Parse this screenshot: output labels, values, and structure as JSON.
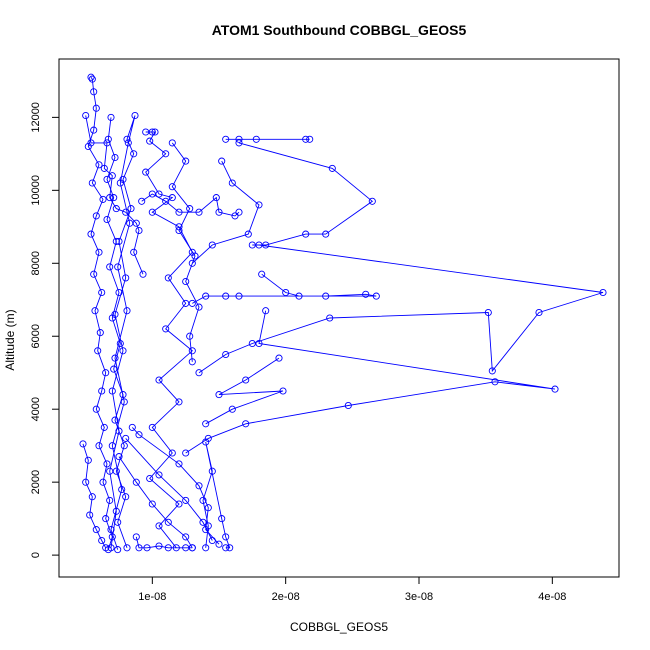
{
  "chart_data": {
    "type": "scatter",
    "title": "ATOM1 Southbound COBBGL_GEOS5",
    "xlabel": "COBBGL_GEOS5",
    "ylabel": "Altitude (m)",
    "xlim": [
      3e-09,
      4.5e-08
    ],
    "ylim": [
      -600,
      13600
    ],
    "x_ticks": [
      1e-08,
      2e-08,
      3e-08,
      4e-08
    ],
    "x_tick_labels": [
      "1e-08",
      "2e-08",
      "3e-08",
      "4e-08"
    ],
    "y_ticks": [
      0,
      2000,
      4000,
      6000,
      8000,
      10000,
      12000
    ],
    "y_tick_labels": [
      "0",
      "2000",
      "4000",
      "6000",
      "8000",
      "10000",
      "12000"
    ],
    "grid": false,
    "legend": "none",
    "marker": "open-circle",
    "connected": true,
    "series_color": "#0000ff",
    "series": [
      {
        "name": "",
        "points": [
          [
            5.4e-09,
            13100
          ],
          [
            5.5e-09,
            13050
          ],
          [
            5.6e-09,
            12700
          ],
          [
            5.8e-09,
            12250
          ],
          [
            5.6e-09,
            11650
          ],
          [
            5.2e-09,
            11200
          ],
          [
            6e-09,
            10700
          ],
          [
            5.5e-09,
            10200
          ],
          [
            6.3e-09,
            9750
          ],
          [
            5.8e-09,
            9300
          ],
          [
            5.4e-09,
            8800
          ],
          [
            6e-09,
            8300
          ],
          [
            5.6e-09,
            7700
          ],
          [
            6.2e-09,
            7200
          ],
          [
            5.7e-09,
            6700
          ],
          [
            6.1e-09,
            6100
          ],
          [
            5.9e-09,
            5600
          ],
          [
            6.5e-09,
            5000
          ],
          [
            6.2e-09,
            4500
          ],
          [
            5.8e-09,
            4000
          ],
          [
            6.4e-09,
            3500
          ],
          [
            6e-09,
            3000
          ],
          [
            6.6e-09,
            2500
          ],
          [
            6.3e-09,
            2000
          ],
          [
            6.8e-09,
            1500
          ],
          [
            6.5e-09,
            1000
          ],
          [
            7e-09,
            500
          ],
          [
            6.7e-09,
            150
          ]
        ]
      },
      {
        "name": "",
        "points": [
          [
            6.9e-09,
            200
          ],
          [
            7.3e-09,
            1200
          ],
          [
            6.8e-09,
            2300
          ],
          [
            7.5e-09,
            3400
          ],
          [
            7e-09,
            4500
          ],
          [
            7.8e-09,
            5600
          ],
          [
            7.2e-09,
            6600
          ],
          [
            8e-09,
            7600
          ],
          [
            7.5e-09,
            8600
          ],
          [
            8.4e-09,
            9500
          ],
          [
            7.8e-09,
            10300
          ],
          [
            8.6e-09,
            11000
          ],
          [
            8.1e-09,
            11400
          ],
          [
            8.7e-09,
            12050
          ],
          [
            8.2e-09,
            11300
          ],
          [
            7.6e-09,
            10200
          ],
          [
            8.3e-09,
            9100
          ],
          [
            7.4e-09,
            7900
          ],
          [
            8.1e-09,
            6700
          ],
          [
            7.2e-09,
            5400
          ],
          [
            7.9e-09,
            4200
          ],
          [
            7e-09,
            3000
          ],
          [
            7.7e-09,
            1800
          ],
          [
            6.9e-09,
            700
          ],
          [
            7.4e-09,
            150
          ]
        ]
      },
      {
        "name": "",
        "points": [
          [
            1e-08,
            11600
          ],
          [
            9.5e-09,
            11600
          ],
          [
            1.02e-08,
            11600
          ],
          [
            9.8e-09,
            11350
          ],
          [
            1.1e-08,
            11000
          ],
          [
            9.5e-09,
            10500
          ],
          [
            1.05e-08,
            9900
          ],
          [
            1.15e-08,
            9800
          ],
          [
            1e-08,
            9400
          ],
          [
            1.2e-08,
            9000
          ],
          [
            1.3e-08,
            8300
          ],
          [
            1.12e-08,
            7600
          ],
          [
            1.25e-08,
            6900
          ],
          [
            1.1e-08,
            6200
          ],
          [
            1.3e-08,
            5600
          ],
          [
            1.05e-08,
            4800
          ],
          [
            1.2e-08,
            4200
          ],
          [
            1e-08,
            3500
          ],
          [
            1.15e-08,
            2800
          ],
          [
            9.8e-09,
            2100
          ],
          [
            1.2e-08,
            1400
          ],
          [
            1.05e-08,
            800
          ],
          [
            1.18e-08,
            200
          ]
        ]
      },
      {
        "name": "",
        "points": [
          [
            1.55e-08,
            11400
          ],
          [
            1.65e-08,
            11400
          ],
          [
            1.78e-08,
            11400
          ],
          [
            2.15e-08,
            11400
          ],
          [
            2.18e-08,
            11400
          ]
        ]
      },
      {
        "name": "",
        "points": [
          [
            1.65e-08,
            11300
          ],
          [
            2.35e-08,
            10600
          ],
          [
            2.65e-08,
            9700
          ],
          [
            2.3e-08,
            8800
          ],
          [
            2.15e-08,
            8800
          ],
          [
            1.85e-08,
            8500
          ],
          [
            1.75e-08,
            8500
          ]
        ]
      },
      {
        "name": "",
        "points": [
          [
            1.52e-08,
            10800
          ],
          [
            1.6e-08,
            10200
          ],
          [
            1.8e-08,
            9600
          ],
          [
            1.72e-08,
            8800
          ],
          [
            1.45e-08,
            8500
          ],
          [
            1.3e-08,
            8000
          ]
        ]
      },
      {
        "name": "",
        "points": [
          [
            1.8e-08,
            8500
          ],
          [
            4.38e-08,
            7200
          ],
          [
            3.9e-08,
            6650
          ],
          [
            3.55e-08,
            5050
          ],
          [
            3.52e-08,
            6650
          ],
          [
            2.33e-08,
            6500
          ],
          [
            1.75e-08,
            5800
          ],
          [
            1.55e-08,
            5500
          ],
          [
            1.35e-08,
            5000
          ]
        ]
      },
      {
        "name": "",
        "points": [
          [
            1.82e-08,
            7700
          ],
          [
            2e-08,
            7200
          ],
          [
            2.1e-08,
            7100
          ],
          [
            2.3e-08,
            7100
          ],
          [
            2.6e-08,
            7150
          ],
          [
            2.68e-08,
            7100
          ],
          [
            1.65e-08,
            7100
          ],
          [
            1.55e-08,
            7100
          ],
          [
            1.4e-08,
            7100
          ],
          [
            1.3e-08,
            6900
          ]
        ]
      },
      {
        "name": "",
        "points": [
          [
            1.85e-08,
            6700
          ],
          [
            1.8e-08,
            5800
          ],
          [
            4.02e-08,
            4550
          ],
          [
            3.57e-08,
            4750
          ],
          [
            2.47e-08,
            4100
          ],
          [
            1.7e-08,
            3600
          ],
          [
            1.42e-08,
            3200
          ],
          [
            1.25e-08,
            2800
          ]
        ]
      },
      {
        "name": "",
        "points": [
          [
            1.95e-08,
            5400
          ],
          [
            1.7e-08,
            4800
          ],
          [
            1.5e-08,
            4400
          ],
          [
            1.98e-08,
            4500
          ],
          [
            1.6e-08,
            4000
          ],
          [
            1.4e-08,
            3600
          ]
        ]
      },
      {
        "name": "",
        "points": [
          [
            1.4e-08,
            200
          ],
          [
            1.42e-08,
            800
          ],
          [
            1.38e-08,
            1500
          ],
          [
            1.45e-08,
            2300
          ],
          [
            1.4e-08,
            3100
          ],
          [
            1.52e-08,
            1000
          ],
          [
            1.55e-08,
            500
          ],
          [
            1.58e-08,
            200
          ],
          [
            1.55e-08,
            200
          ]
        ]
      },
      {
        "name": "",
        "points": [
          [
            4.8e-09,
            3050
          ],
          [
            5.2e-09,
            2600
          ],
          [
            5e-09,
            2000
          ],
          [
            5.5e-09,
            1600
          ],
          [
            5.3e-09,
            1100
          ],
          [
            5.8e-09,
            700
          ],
          [
            6.2e-09,
            400
          ],
          [
            6.5e-09,
            200
          ]
        ]
      },
      {
        "name": "",
        "points": [
          [
            5e-09,
            12050
          ],
          [
            5.4e-09,
            11300
          ],
          [
            6.6e-09,
            11300
          ],
          [
            6.4e-09,
            10600
          ],
          [
            7e-09,
            10400
          ],
          [
            6.8e-09,
            9800
          ],
          [
            7.3e-09,
            9500
          ],
          [
            8e-09,
            9400
          ],
          [
            8.8e-09,
            9100
          ],
          [
            9e-09,
            8900
          ],
          [
            8.6e-09,
            8300
          ],
          [
            9.3e-09,
            7700
          ]
        ]
      },
      {
        "name": "",
        "points": [
          [
            6.9e-09,
            12000
          ],
          [
            6.7e-09,
            11400
          ],
          [
            7.2e-09,
            10900
          ],
          [
            6.6e-09,
            10300
          ],
          [
            7.1e-09,
            9800
          ],
          [
            6.6e-09,
            9200
          ],
          [
            7.3e-09,
            8600
          ],
          [
            6.8e-09,
            7900
          ],
          [
            7.5e-09,
            7200
          ],
          [
            7e-09,
            6500
          ],
          [
            7.6e-09,
            5800
          ],
          [
            7.1e-09,
            5100
          ],
          [
            7.8e-09,
            4400
          ],
          [
            7.2e-09,
            3700
          ],
          [
            7.9e-09,
            3000
          ],
          [
            7.3e-09,
            2300
          ],
          [
            8e-09,
            1600
          ],
          [
            7.4e-09,
            900
          ],
          [
            8.1e-09,
            200
          ]
        ]
      },
      {
        "name": "",
        "points": [
          [
            8.5e-09,
            3500
          ],
          [
            9e-09,
            3300
          ],
          [
            1.2e-08,
            2500
          ],
          [
            1.35e-08,
            1900
          ],
          [
            1.42e-08,
            1300
          ],
          [
            1.4e-08,
            700
          ],
          [
            1.5e-08,
            300
          ]
        ]
      },
      {
        "name": "",
        "points": [
          [
            8e-09,
            3200
          ],
          [
            1.05e-08,
            2200
          ],
          [
            1.25e-08,
            1500
          ],
          [
            1.38e-08,
            900
          ],
          [
            1.45e-08,
            400
          ]
        ]
      },
      {
        "name": "",
        "points": [
          [
            9.2e-09,
            9700
          ],
          [
            1e-08,
            9900
          ],
          [
            1.1e-08,
            9700
          ],
          [
            1.2e-08,
            9400
          ],
          [
            1.35e-08,
            9400
          ],
          [
            1.48e-08,
            9800
          ],
          [
            1.5e-08,
            9400
          ],
          [
            1.62e-08,
            9300
          ],
          [
            1.65e-08,
            9400
          ]
        ]
      },
      {
        "name": "",
        "points": [
          [
            7.5e-09,
            2700
          ],
          [
            8.8e-09,
            2000
          ],
          [
            1e-08,
            1400
          ],
          [
            1.12e-08,
            900
          ],
          [
            1.25e-08,
            500
          ],
          [
            1.3e-08,
            200
          ]
        ]
      },
      {
        "name": "",
        "points": [
          [
            8.8e-09,
            500
          ],
          [
            9e-09,
            200
          ],
          [
            9.6e-09,
            200
          ],
          [
            1.05e-08,
            250
          ],
          [
            1.12e-08,
            200
          ],
          [
            1.25e-08,
            200
          ],
          [
            1.3e-08,
            200
          ]
        ]
      },
      {
        "name": "",
        "points": [
          [
            1.15e-08,
            11300
          ],
          [
            1.25e-08,
            10800
          ],
          [
            1.15e-08,
            10100
          ],
          [
            1.28e-08,
            9500
          ],
          [
            1.2e-08,
            8900
          ],
          [
            1.32e-08,
            8200
          ],
          [
            1.25e-08,
            7500
          ],
          [
            1.35e-08,
            6800
          ],
          [
            1.28e-08,
            6000
          ],
          [
            1.3e-08,
            5300
          ]
        ]
      }
    ]
  }
}
